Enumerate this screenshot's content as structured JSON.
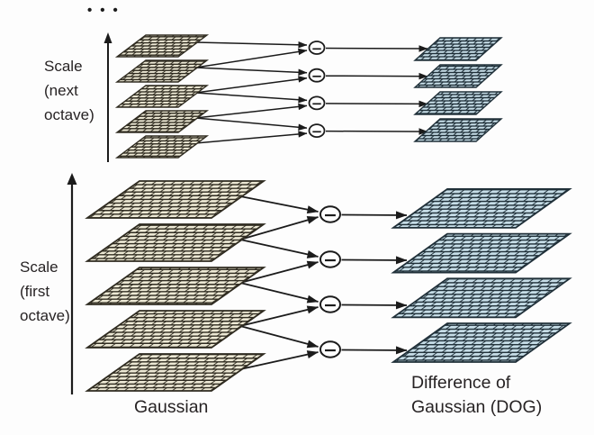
{
  "diagram": {
    "labels": {
      "continuation_dots": "•••",
      "scale_next_octave": {
        "lines": [
          "Scale",
          "(next",
          "octave)"
        ]
      },
      "scale_first_octave": {
        "lines": [
          "Scale",
          "(first",
          "octave)"
        ]
      },
      "gaussian": "Gaussian",
      "difference_of_gaussian": {
        "lines": [
          "Difference of",
          "Gaussian (DOG)"
        ]
      }
    },
    "operator_symbol": "−",
    "structure": {
      "octaves": [
        {
          "name": "first octave",
          "gaussian_images": 5,
          "difference_images": 4
        },
        {
          "name": "next octave",
          "gaussian_images": 5,
          "difference_images": 4
        }
      ]
    },
    "colors": {
      "background": "#fdfdfd",
      "gaussian_cell": "#ece8d4",
      "gaussian_line": "#2f2b20",
      "dog_cell": "#c6dde7",
      "dog_line": "#203039",
      "arrow": "#1b1b1b",
      "operator_fill": "#ffffff",
      "text": "#272324"
    }
  }
}
